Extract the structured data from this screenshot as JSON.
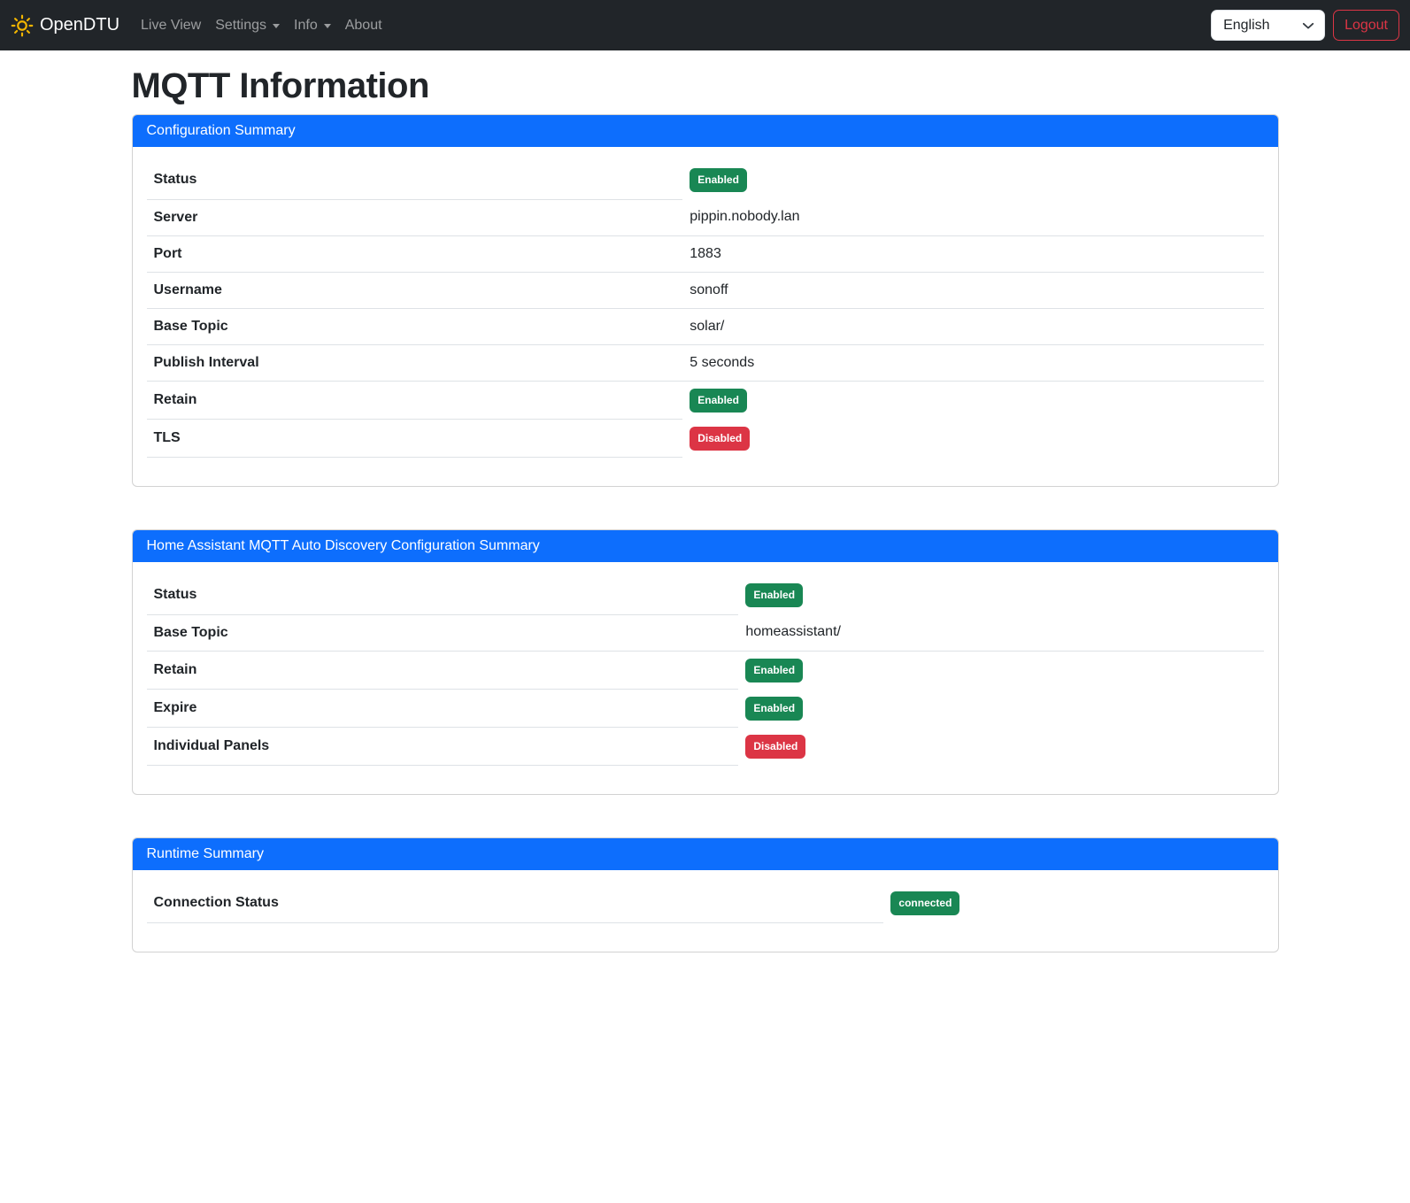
{
  "navbar": {
    "brand": "OpenDTU",
    "items": [
      {
        "label": "Live View",
        "dropdown": false
      },
      {
        "label": "Settings",
        "dropdown": true
      },
      {
        "label": "Info",
        "dropdown": true
      },
      {
        "label": "About",
        "dropdown": false
      }
    ],
    "language": {
      "selected": "English"
    },
    "logout_label": "Logout"
  },
  "page": {
    "title": "MQTT Information"
  },
  "cards": [
    {
      "title": "Configuration Summary",
      "label_col_width": "48%",
      "rows": [
        {
          "label": "Status",
          "type": "badge",
          "value": "Enabled",
          "badge": "success"
        },
        {
          "label": "Server",
          "type": "text",
          "value": "pippin.nobody.lan"
        },
        {
          "label": "Port",
          "type": "text",
          "value": "1883"
        },
        {
          "label": "Username",
          "type": "text",
          "value": "sonoff"
        },
        {
          "label": "Base Topic",
          "type": "text",
          "value": "solar/"
        },
        {
          "label": "Publish Interval",
          "type": "text",
          "value": "5 seconds"
        },
        {
          "label": "Retain",
          "type": "badge",
          "value": "Enabled",
          "badge": "success"
        },
        {
          "label": "TLS",
          "type": "badge",
          "value": "Disabled",
          "badge": "danger"
        }
      ]
    },
    {
      "title": "Home Assistant MQTT Auto Discovery Configuration Summary",
      "label_col_width": "53%",
      "rows": [
        {
          "label": "Status",
          "type": "badge",
          "value": "Enabled",
          "badge": "success"
        },
        {
          "label": "Base Topic",
          "type": "text",
          "value": "homeassistant/"
        },
        {
          "label": "Retain",
          "type": "badge",
          "value": "Enabled",
          "badge": "success"
        },
        {
          "label": "Expire",
          "type": "badge",
          "value": "Enabled",
          "badge": "success"
        },
        {
          "label": "Individual Panels",
          "type": "badge",
          "value": "Disabled",
          "badge": "danger"
        }
      ]
    },
    {
      "title": "Runtime Summary",
      "label_col_width": "66%",
      "rows": [
        {
          "label": "Connection Status",
          "type": "badge",
          "value": "connected",
          "badge": "success"
        }
      ]
    }
  ],
  "colors": {
    "primary": "#0d6efd",
    "success": "#198754",
    "danger": "#dc3545",
    "navbar_bg": "#212529",
    "brand_icon": "#f2b500"
  },
  "icons": {
    "brand": "sun-icon",
    "nav_dropdown": "chevron-down-caret",
    "language_select": "chevron-down-icon"
  }
}
